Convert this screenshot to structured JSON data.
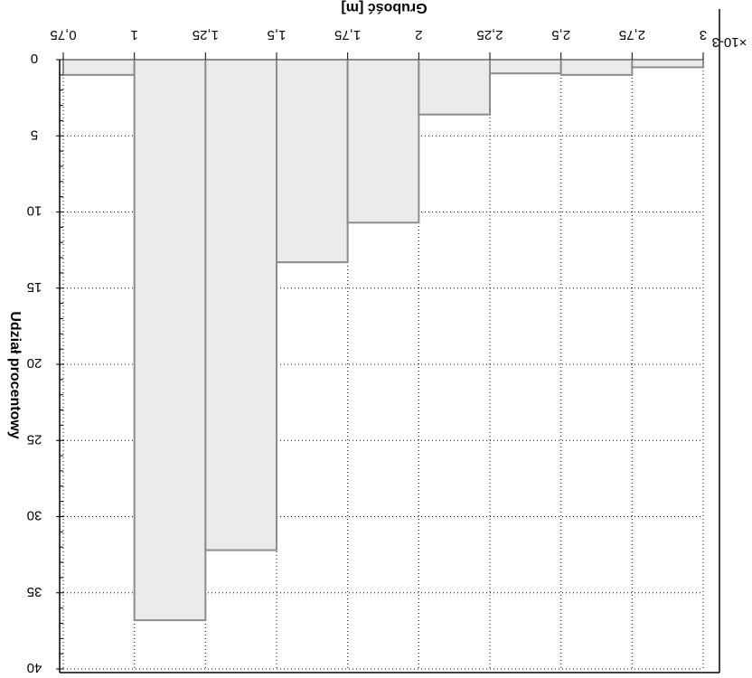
{
  "chart_data": {
    "type": "bar",
    "orientation": "rotated-180",
    "xlabel": "Grubość [m]",
    "ylabel": "Udział procentowy",
    "x_multiplier": "×10-3",
    "x_ticks": [
      "0,75",
      "1",
      "1,25",
      "1,5",
      "1,75",
      "2",
      "2,25",
      "2,5",
      "2,75",
      "3"
    ],
    "x_tick_values": [
      0.75,
      1,
      1.25,
      1.5,
      1.75,
      2,
      2.25,
      2.5,
      2.75,
      3
    ],
    "y_ticks": [
      "0",
      "5",
      "10",
      "15",
      "20",
      "25",
      "30",
      "35",
      "40"
    ],
    "y_tick_values": [
      0,
      5,
      10,
      15,
      20,
      25,
      30,
      35,
      40
    ],
    "xlim": [
      0.75,
      3
    ],
    "ylim": [
      0,
      40
    ],
    "bins": [
      {
        "x0": 0.75,
        "x1": 1.0,
        "value": 1.0
      },
      {
        "x0": 1.0,
        "x1": 1.25,
        "value": 36.8
      },
      {
        "x0": 1.25,
        "x1": 1.5,
        "value": 32.2
      },
      {
        "x0": 1.5,
        "x1": 1.75,
        "value": 13.3
      },
      {
        "x0": 1.75,
        "x1": 2.0,
        "value": 10.7
      },
      {
        "x0": 2.0,
        "x1": 2.25,
        "value": 3.6
      },
      {
        "x0": 2.25,
        "x1": 2.5,
        "value": 0.9
      },
      {
        "x0": 2.5,
        "x1": 2.75,
        "value": 1.0
      },
      {
        "x0": 2.75,
        "x1": 3.0,
        "value": 0.5
      }
    ],
    "grid": true
  }
}
